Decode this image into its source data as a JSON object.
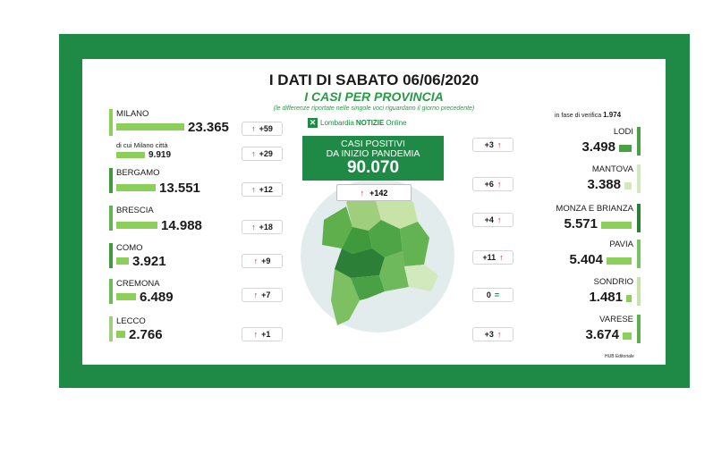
{
  "header": {
    "title": "I DATI DI SABATO 06/06/2020",
    "subtitle": "I CASI PER PROVINCIA",
    "note": "(le differenze riportate nelle singole voci riguardano il giorno precedente)"
  },
  "brand": {
    "part1": "Lombardia",
    "part2": "NOTIZIE",
    "part3": "Online"
  },
  "total": {
    "line1": "CASI POSITIVI",
    "line2": "DA INIZIO PANDEMIA",
    "value": "90.070",
    "delta": "+142"
  },
  "verify": {
    "label": "in fase di verifica",
    "value": "1.974"
  },
  "left_provinces": [
    {
      "name": "MILANO",
      "value": "23.365",
      "delta": "+59"
    },
    {
      "name": "di cui Milano città",
      "value": "9.919",
      "delta": "+29"
    },
    {
      "name": "BERGAMO",
      "value": "13.551",
      "delta": "+12"
    },
    {
      "name": "BRESCIA",
      "value": "14.988",
      "delta": "+18"
    },
    {
      "name": "COMO",
      "value": "3.921",
      "delta": "+9"
    },
    {
      "name": "CREMONA",
      "value": "6.489",
      "delta": "+7"
    },
    {
      "name": "LECCO",
      "value": "2.766",
      "delta": "+1"
    }
  ],
  "right_provinces": [
    {
      "name": "LODI",
      "value": "3.498",
      "delta": "+3"
    },
    {
      "name": "MANTOVA",
      "value": "3.388",
      "delta": "+6"
    },
    {
      "name": "MONZA E BRIANZA",
      "value": "5.571",
      "delta": "+4"
    },
    {
      "name": "PAVIA",
      "value": "5.404",
      "delta": "+11"
    },
    {
      "name": "SONDRIO",
      "value": "1.481",
      "delta": "0"
    },
    {
      "name": "VARESE",
      "value": "3.674",
      "delta": "+3"
    }
  ],
  "footer": {
    "credit": "HUB Editoriale"
  },
  "icons": {
    "up": "up-arrow-icon",
    "equal": "equal-icon",
    "logo": "lombardia-logo-icon"
  },
  "colors": {
    "frame": "#1e8a45",
    "accent": "#2a9a45",
    "bar": "#8ccf5a",
    "arrow": "#c0182a"
  }
}
